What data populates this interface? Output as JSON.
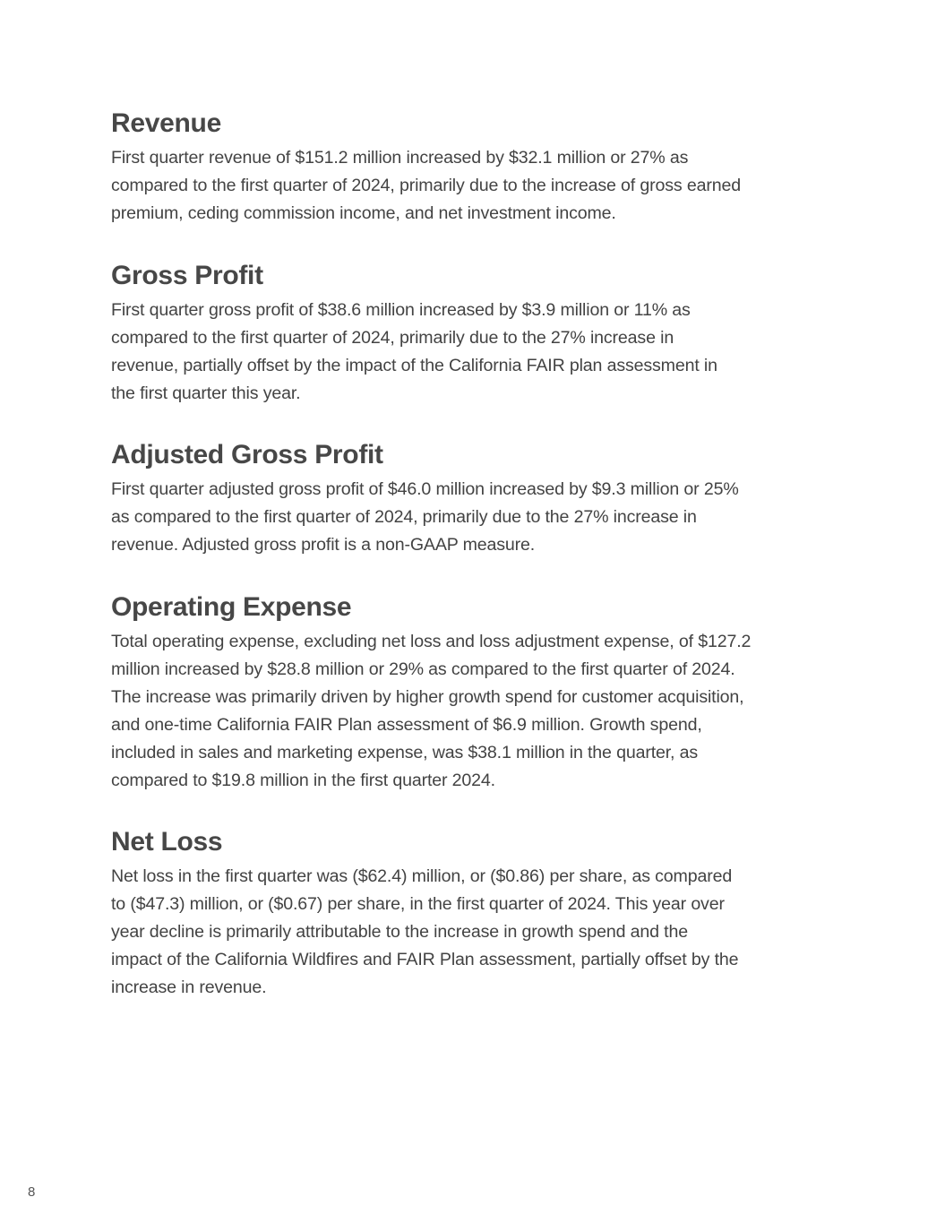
{
  "sections": [
    {
      "title": "Revenue",
      "lines": [
        "First quarter revenue of $151.2 million increased by $32.1 million or 27% as",
        "compared to the first quarter of 2024, primarily due to the increase of gross earned",
        "premium, ceding commission income, and net investment income."
      ]
    },
    {
      "title": "Gross Profit",
      "lines": [
        "First quarter gross profit of $38.6 million increased by $3.9 million or 11% as",
        "compared to the first quarter of 2024, primarily due to the 27% increase in",
        "revenue, partially offset by the impact of the California FAIR plan assessment in",
        "the first quarter this year."
      ]
    },
    {
      "title": "Adjusted Gross Profit",
      "lines": [
        "First quarter adjusted gross profit of $46.0 million increased by $9.3 million or 25%",
        "as compared to the first quarter of 2024, primarily due to the 27% increase in",
        "revenue. Adjusted gross profit is a non-GAAP measure."
      ]
    },
    {
      "title": "Operating Expense",
      "lines": [
        "Total operating expense, excluding net loss and loss adjustment expense, of $127.2",
        "million increased by $28.8 million or 29% as compared to the first quarter of 2024.",
        "The increase was primarily driven by higher growth spend for customer acquisition,",
        "and one-time California FAIR Plan assessment of $6.9 million. Growth spend,",
        "included in sales and marketing expense, was $38.1 million in the quarter, as",
        "compared to $19.8 million in the first quarter 2024."
      ]
    },
    {
      "title": "Net Loss",
      "lines": [
        "Net loss in the first quarter was ($62.4) million, or ($0.86) per share, as compared",
        "to ($47.3) million, or ($0.67) per share, in the first quarter of 2024. This year over",
        "year decline is primarily attributable to the increase in growth spend and the",
        "impact of the California Wildfires and FAIR Plan assessment, partially offset by the",
        "increase in revenue."
      ]
    }
  ],
  "page_number": "8"
}
